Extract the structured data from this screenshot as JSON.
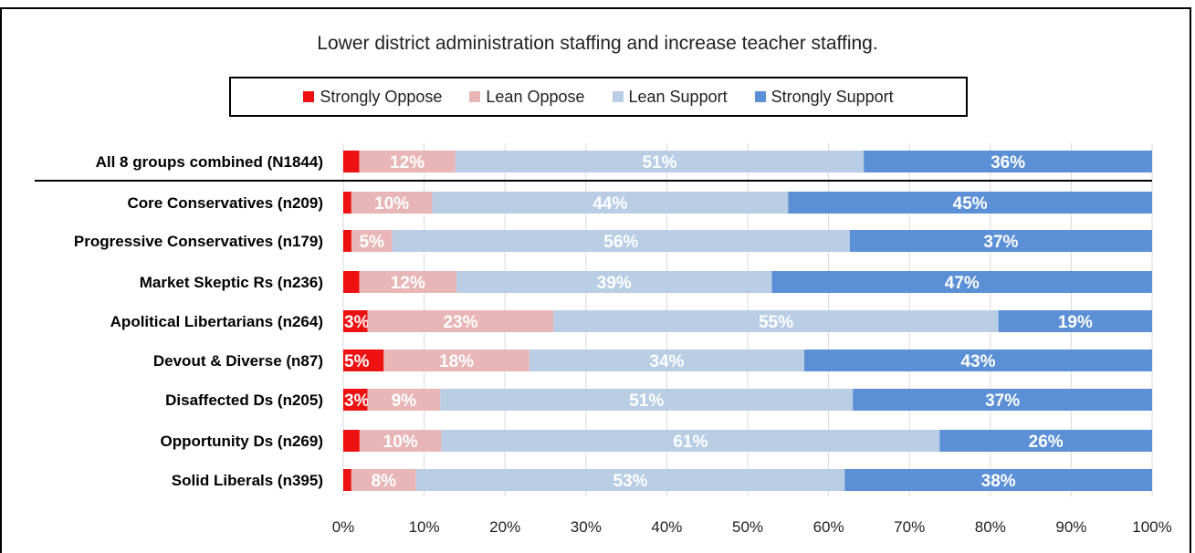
{
  "chart_data": {
    "type": "bar",
    "orientation": "horizontal",
    "stacked": true,
    "title": "Lower district administration staffing and increase teacher staffing.",
    "categories": [
      "All 8 groups combined (N1844)",
      "Core Conservatives (n209)",
      "Progressive Conservatives (n179)",
      "Market Skeptic Rs (n236)",
      "Apolitical Libertarians (n264)",
      "Devout & Diverse (n87)",
      "Disaffected Ds (n205)",
      "Opportunity Ds (n269)",
      "Solid Liberals (n395)"
    ],
    "series": [
      {
        "name": "Strongly Oppose",
        "color": "#ee1111",
        "values": [
          2,
          1,
          1,
          2,
          3,
          5,
          3,
          2,
          1
        ],
        "labels": [
          "",
          "",
          "",
          "",
          "3%",
          "5%",
          "3%",
          "",
          ""
        ]
      },
      {
        "name": "Lean Oppose",
        "color": "#e8b6b6",
        "values": [
          12,
          10,
          5,
          12,
          23,
          18,
          9,
          10,
          8
        ],
        "labels": [
          "12%",
          "10%",
          "5%",
          "12%",
          "23%",
          "18%",
          "9%",
          "10%",
          "8%"
        ]
      },
      {
        "name": "Lean Support",
        "color": "#b9cde5",
        "values": [
          51,
          44,
          56,
          39,
          55,
          34,
          51,
          61,
          53
        ],
        "labels": [
          "51%",
          "44%",
          "56%",
          "39%",
          "55%",
          "34%",
          "51%",
          "61%",
          "53%"
        ]
      },
      {
        "name": "Strongly Support",
        "color": "#5b8fd6",
        "values": [
          36,
          45,
          37,
          47,
          19,
          43,
          37,
          26,
          38
        ],
        "labels": [
          "36%",
          "45%",
          "37%",
          "47%",
          "19%",
          "43%",
          "37%",
          "26%",
          "38%"
        ]
      }
    ],
    "x_ticks": [
      "0%",
      "10%",
      "20%",
      "30%",
      "40%",
      "50%",
      "60%",
      "70%",
      "80%",
      "90%",
      "100%"
    ],
    "xlim": [
      0,
      100
    ],
    "grid": true,
    "legend_position": "top",
    "separator_after_first_row": true
  }
}
